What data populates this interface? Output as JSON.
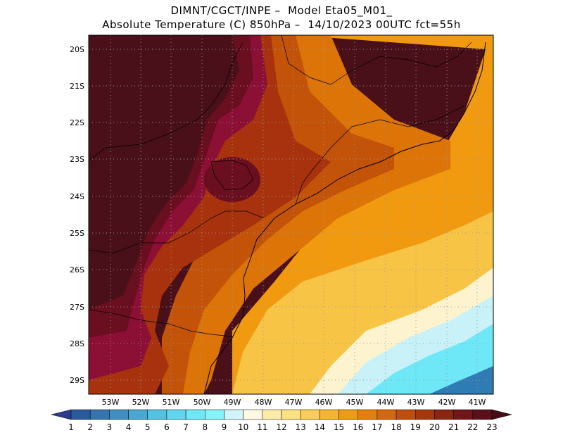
{
  "header": {
    "line1": "DIMNT/CGCT/INPE –  Model Eta05_M01_",
    "line2": "Absolute Temperature (C) 850hPa –  14/10/2023 00UTC fct=55h"
  },
  "map": {
    "lat_labels": [
      "20S",
      "21S",
      "22S",
      "23S",
      "24S",
      "25S",
      "26S",
      "27S",
      "28S",
      "29S"
    ],
    "lon_labels": [
      "53W",
      "52W",
      "51W",
      "50W",
      "49W",
      "48W",
      "47W",
      "46W",
      "45W",
      "44W",
      "43W",
      "42W",
      "41W"
    ]
  },
  "colorbar": {
    "labels": [
      "1",
      "2",
      "3",
      "4",
      "5",
      "6",
      "7",
      "8",
      "9",
      "10",
      "11",
      "12",
      "13",
      "14",
      "15",
      "16",
      "17",
      "18",
      "19",
      "20",
      "21",
      "22",
      "23"
    ],
    "colors": [
      "#2c3d8f",
      "#2a5a9e",
      "#3574ae",
      "#3f8fc0",
      "#47a9d3",
      "#52c2e2",
      "#5fd6ef",
      "#6ee8f6",
      "#85f4fa",
      "#d2f4fb",
      "#fff8e3",
      "#fdeca8",
      "#fde07f",
      "#fbcd57",
      "#f6b52d",
      "#f09c10",
      "#e77f0a",
      "#d76609",
      "#c14e08",
      "#a8370a",
      "#8c2410",
      "#731519",
      "#5a0f1b",
      "#460d16"
    ]
  },
  "colors": {
    "hot_max": "#4a1019",
    "hot_deep": "#6a0f1f",
    "magenta_red": "#8c0f35",
    "red_brown": "#a8320d",
    "orange_dark": "#c25309",
    "orange": "#dc7408",
    "amber": "#f19a0f",
    "yellow": "#f7c445",
    "pale": "#fdf3cf",
    "light_cyan": "#c8f1f8",
    "cyan": "#6ee8f6",
    "blue": "#2f7bb4"
  }
}
